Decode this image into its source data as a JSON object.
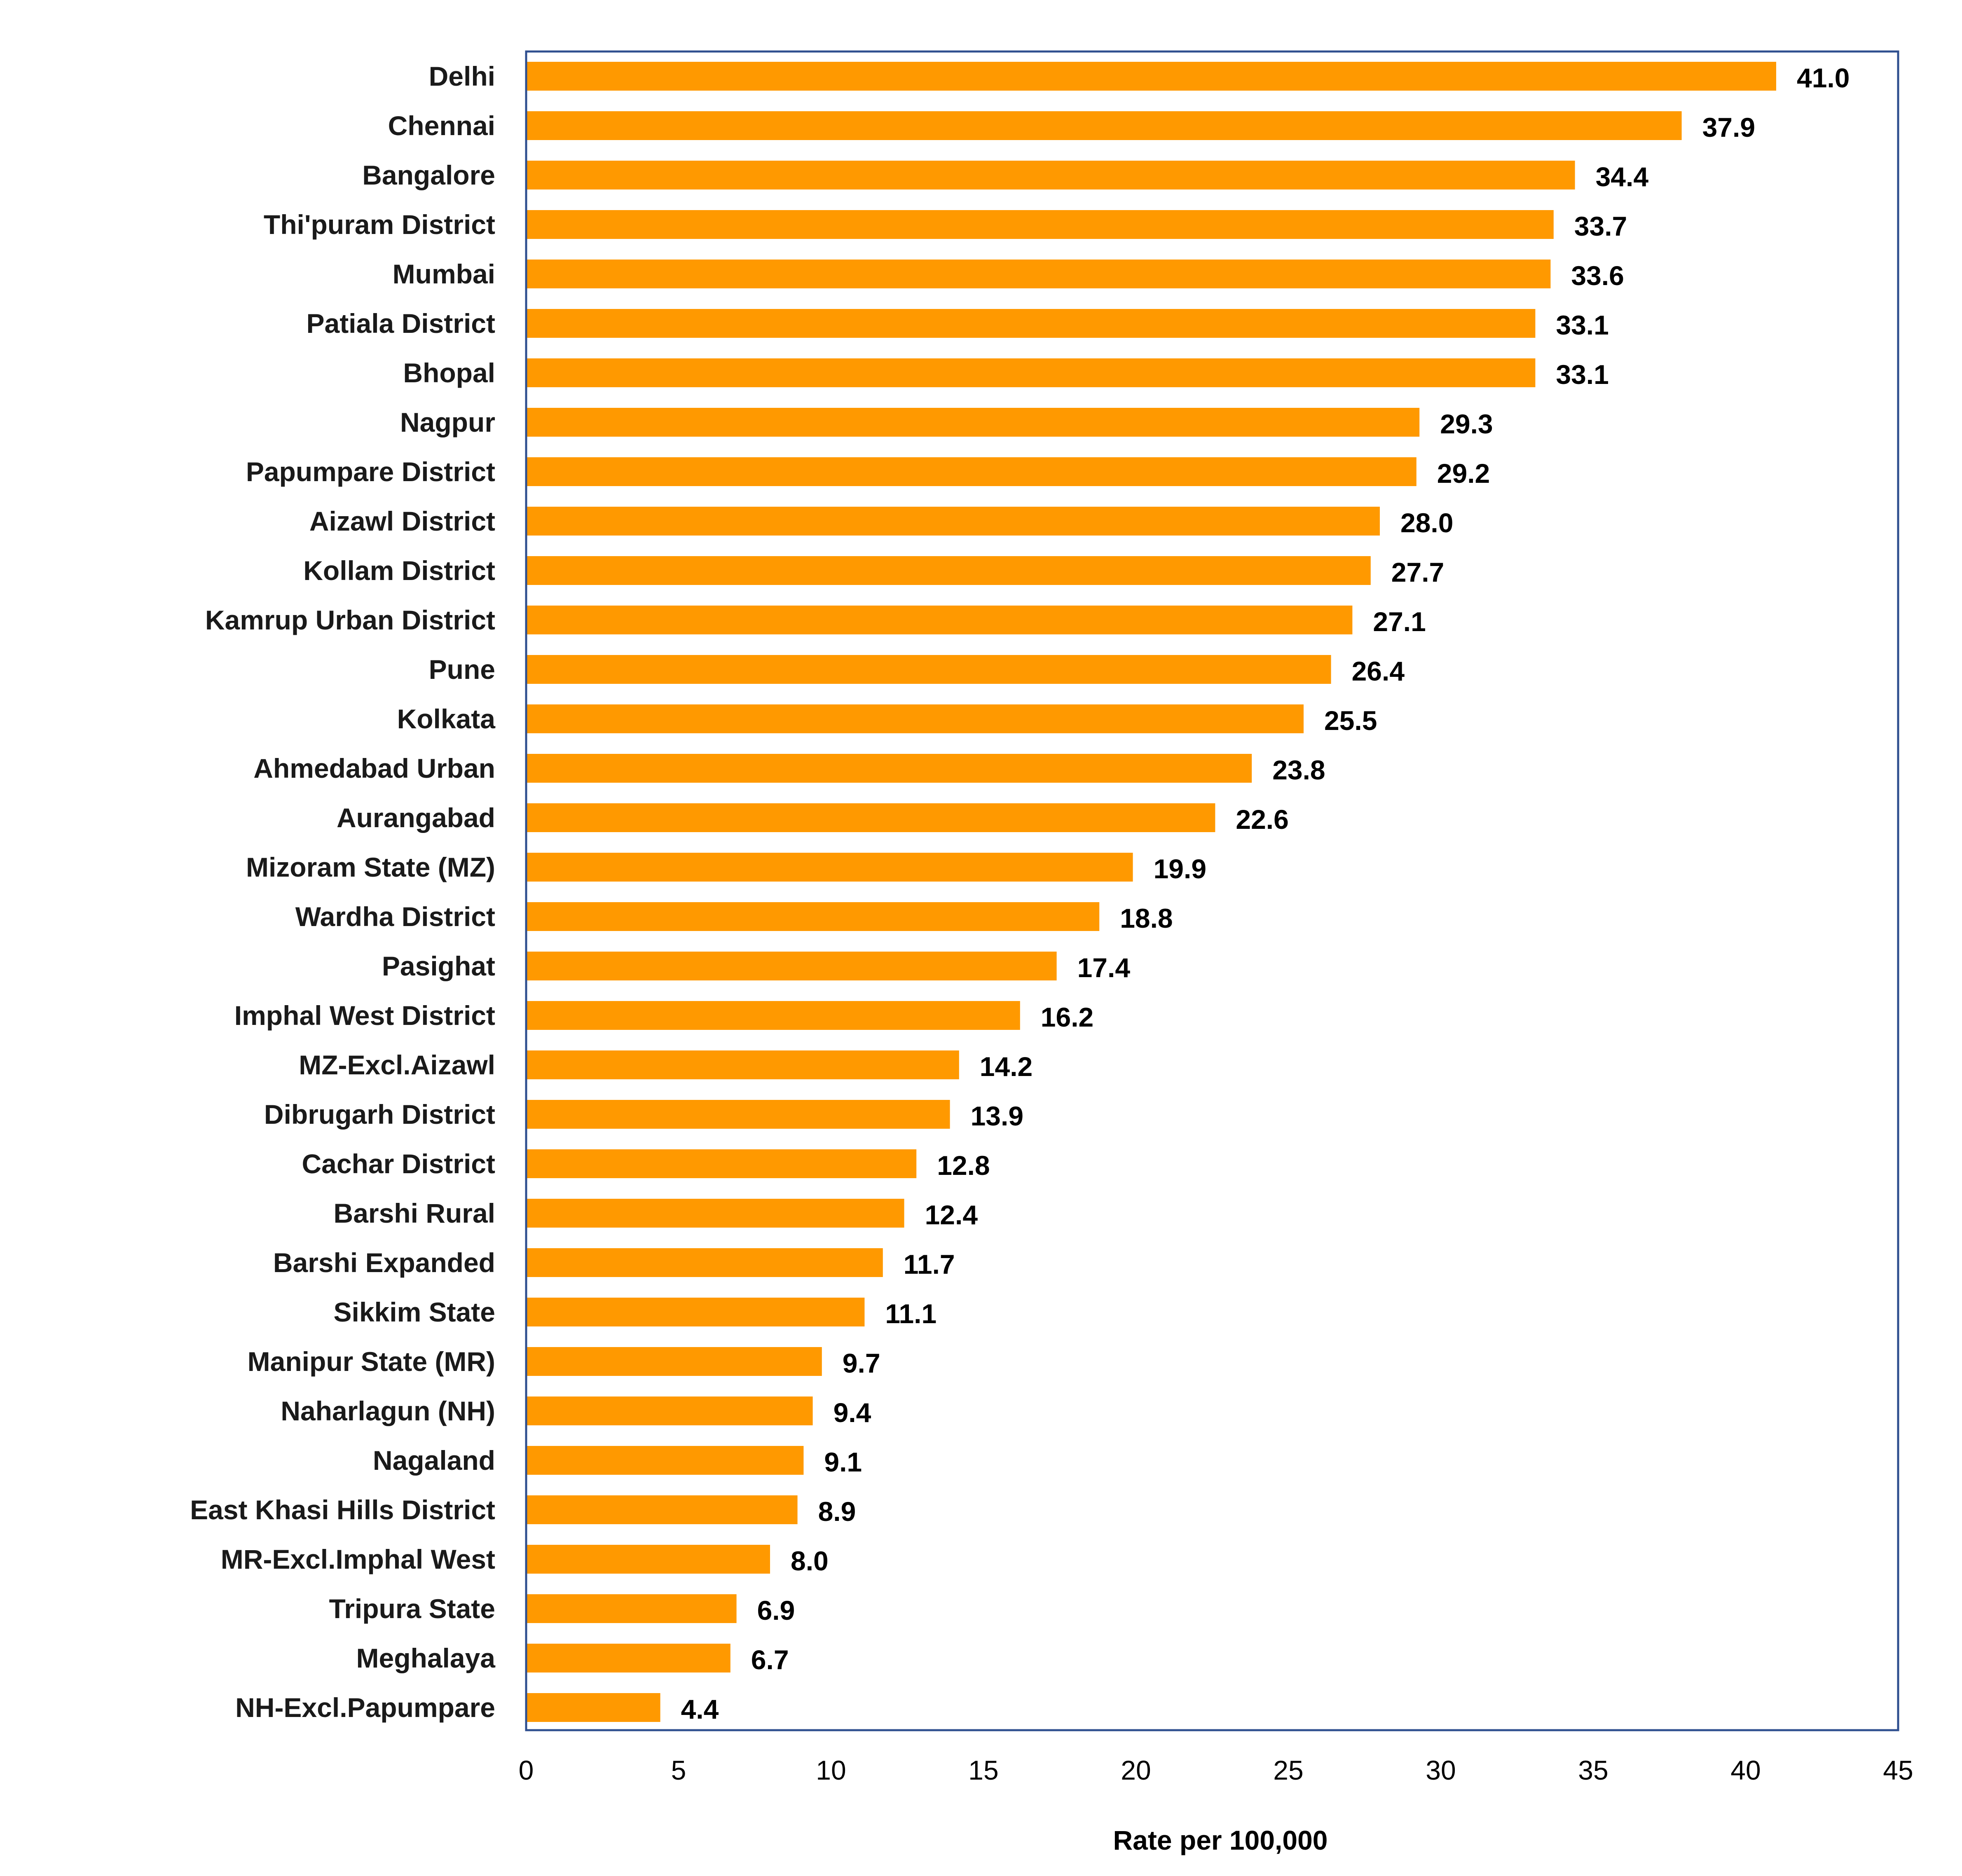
{
  "chart_data": {
    "type": "bar",
    "orientation": "horizontal",
    "title": "",
    "xlabel": "Rate per 100,000",
    "ylabel": "",
    "xlim": [
      0,
      45
    ],
    "x_ticks": [
      "0",
      "5",
      "10",
      "15",
      "20",
      "25",
      "30",
      "35",
      "40",
      "45"
    ],
    "grid": false,
    "legend": "none",
    "bar_color": "#FF9900",
    "frame_color": "#2F4F8F",
    "categories": [
      "Delhi",
      "Chennai",
      "Bangalore",
      "Thi'puram District",
      "Mumbai",
      "Patiala District",
      "Bhopal",
      "Nagpur",
      "Papumpare District",
      "Aizawl District",
      "Kollam District",
      "Kamrup Urban District",
      "Pune",
      "Kolkata",
      "Ahmedabad Urban",
      "Aurangabad",
      "Mizoram State (MZ)",
      "Wardha District",
      "Pasighat",
      "Imphal West District",
      "MZ-Excl.Aizawl",
      "Dibrugarh District",
      "Cachar District",
      "Barshi Rural",
      "Barshi Expanded",
      "Sikkim State",
      "Manipur State (MR)",
      "Naharlagun (NH)",
      "Nagaland",
      "East Khasi Hills District",
      "MR-Excl.Imphal West",
      "Tripura State",
      "Meghalaya",
      "NH-Excl.Papumpare"
    ],
    "values": [
      41.0,
      37.9,
      34.4,
      33.7,
      33.6,
      33.1,
      33.1,
      29.3,
      29.2,
      28.0,
      27.7,
      27.1,
      26.4,
      25.5,
      23.8,
      22.6,
      19.9,
      18.8,
      17.4,
      16.2,
      14.2,
      13.9,
      12.8,
      12.4,
      11.7,
      11.1,
      9.7,
      9.4,
      9.1,
      8.9,
      8.0,
      6.9,
      6.7,
      4.4
    ],
    "value_labels": [
      "41.0",
      "37.9",
      "34.4",
      "33.7",
      "33.6",
      "33.1",
      "33.1",
      "29.3",
      "29.2",
      "28.0",
      "27.7",
      "27.1",
      "26.4",
      "25.5",
      "23.8",
      "22.6",
      "19.9",
      "18.8",
      "17.4",
      "16.2",
      "14.2",
      "13.9",
      "12.8",
      "12.4",
      "11.7",
      "11.1",
      "9.7",
      "9.4",
      "9.1",
      "8.9",
      "8.0",
      "6.9",
      "6.7",
      "4.4"
    ]
  }
}
